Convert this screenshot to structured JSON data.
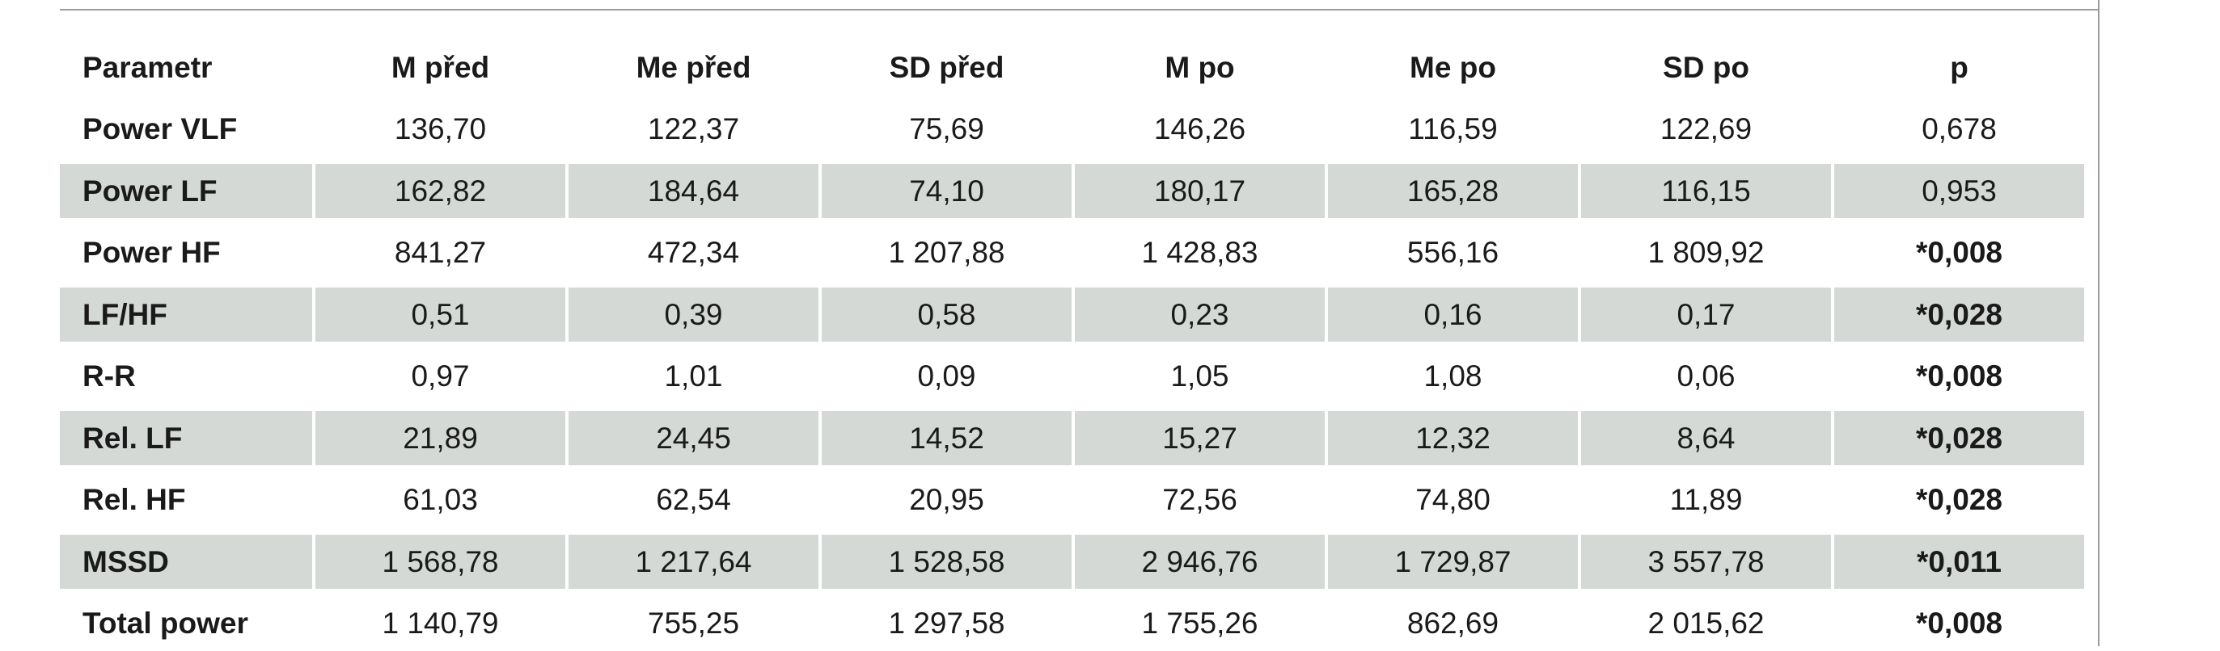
{
  "table": {
    "header": [
      "Parametr",
      "M před",
      "Me před",
      "SD před",
      "M po",
      "Me po",
      "SD po",
      "p"
    ],
    "rows": [
      [
        "Power VLF",
        "136,70",
        "122,37",
        "75,69",
        "146,26",
        "116,59",
        "122,69",
        "0,678"
      ],
      [
        "Power LF",
        "162,82",
        "184,64",
        "74,10",
        "180,17",
        "165,28",
        "116,15",
        "0,953"
      ],
      [
        "Power HF",
        "841,27",
        "472,34",
        "1 207,88",
        "1 428,83",
        "556,16",
        "1 809,92",
        "*0,008"
      ],
      [
        "LF/HF",
        "0,51",
        "0,39",
        "0,58",
        "0,23",
        "0,16",
        "0,17",
        "*0,028"
      ],
      [
        "R-R",
        "0,97",
        "1,01",
        "0,09",
        "1,05",
        "1,08",
        "0,06",
        "*0,008"
      ],
      [
        "Rel. LF",
        "21,89",
        "24,45",
        "14,52",
        "15,27",
        "12,32",
        "8,64",
        "*0,028"
      ],
      [
        "Rel. HF",
        "61,03",
        "62,54",
        "20,95",
        "72,56",
        "74,80",
        "11,89",
        "*0,028"
      ],
      [
        "MSSD",
        "1 568,78",
        "1 217,64",
        "1 528,58",
        "2 946,76",
        "1 729,87",
        "3 557,78",
        "*0,011"
      ],
      [
        "Total power",
        "1 140,79",
        "755,25",
        "1 297,58",
        "1 755,26",
        "862,69",
        "2 015,62",
        "*0,008"
      ]
    ]
  }
}
